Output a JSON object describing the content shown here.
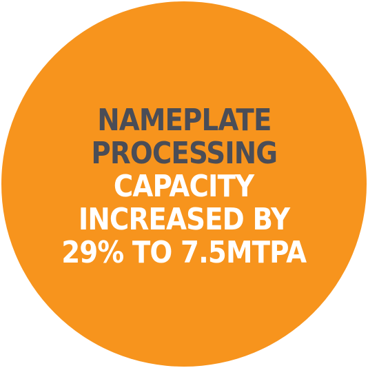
{
  "colors": {
    "circle": "#f7941d",
    "dark_text": "#4a4d57",
    "light_text": "#ffffff"
  },
  "badge": {
    "lines": [
      {
        "text": "NAMEPLATE",
        "tone": "dark"
      },
      {
        "text": "PROCESSING",
        "tone": "dark"
      },
      {
        "text": "CAPACITY",
        "tone": "light"
      },
      {
        "text": "INCREASED BY",
        "tone": "light"
      },
      {
        "text": "29% TO 7.5MTPA",
        "tone": "light"
      }
    ]
  }
}
